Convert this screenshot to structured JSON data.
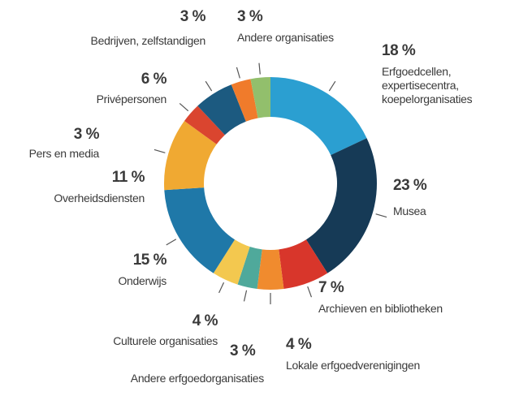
{
  "chart_data": {
    "type": "donut",
    "categories": [
      "Erfgoedcellen, expertisecentra, koepelorganisaties",
      "Musea",
      "Archieven en bibliotheken",
      "Lokale erfgoedverenigingen",
      "Andere erfgoedorganisaties",
      "Culturele organisaties",
      "Onderwijs",
      "Overheidsdiensten",
      "Pers en media",
      "Privépersonen",
      "Bedrijven, zelfstandigen",
      "Andere organisaties"
    ],
    "values": [
      18,
      23,
      7,
      4,
      3,
      4,
      15,
      11,
      3,
      6,
      3,
      3
    ],
    "value_labels": [
      "18 %",
      "23 %",
      "7 %",
      "4 %",
      "3 %",
      "4 %",
      "15 %",
      "11 %",
      "3 %",
      "6 %",
      "3 %",
      "3 %"
    ],
    "colors": [
      "#2b9fd1",
      "#163a56",
      "#d8362b",
      "#f08b2e",
      "#4fa99b",
      "#f3c84f",
      "#1f78a8",
      "#f0a932",
      "#da452f",
      "#1c5a80",
      "#f07b2b",
      "#92bf6c"
    ]
  }
}
